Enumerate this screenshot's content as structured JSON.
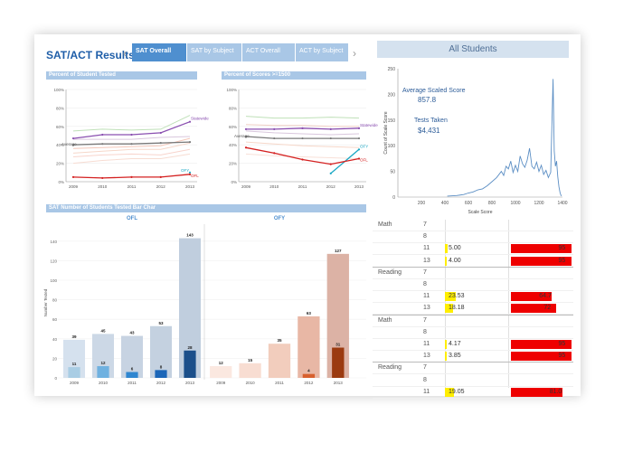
{
  "header": {
    "title": "SAT/ACT Results",
    "tabs": [
      {
        "label": "SAT Overall",
        "active": true
      },
      {
        "label": "SAT by Subject",
        "active": false
      },
      {
        "label": "ACT Overall",
        "active": false
      },
      {
        "label": "ACT by Subject",
        "active": false
      }
    ],
    "prev_icon": "chevron-left-icon",
    "next_icon": "chevron-right-icon"
  },
  "colors": {
    "tab_active": "#4f8fcf",
    "tab": "#a9c7e6",
    "ofl": "#2b74b5",
    "ofy": "#c0552a",
    "highlight_yellow": "#ffee00",
    "highlight_red": "#ee0000"
  },
  "panels": {
    "tested": {
      "title": "Percent of Student Tested"
    },
    "scores": {
      "title": "Percent of Scores >=1500"
    },
    "bar": {
      "title": "SAT Number of Students Tested Bar Char"
    },
    "all": {
      "title": "All Students",
      "avg_label": "Average Scaled Score",
      "avg_value": "857.8",
      "tests_label": "Tests Taken",
      "tests_value": "$4,431"
    }
  },
  "chart_data": [
    {
      "type": "line",
      "title": "Percent of Student Tested",
      "x": [
        "2009",
        "2010",
        "2011",
        "2012",
        "2013"
      ],
      "yticks": [
        "0%",
        "20%",
        "40%",
        "60%",
        "80%",
        "100%"
      ],
      "ylim": [
        0,
        100
      ],
      "series": [
        {
          "name": "Statewide",
          "values": [
            47,
            51,
            51,
            53,
            65
          ]
        },
        {
          "name": "Average",
          "values": [
            40,
            41,
            41,
            42,
            43
          ]
        },
        {
          "name": "OFY",
          "values": [
            null,
            null,
            null,
            null,
            10
          ]
        },
        {
          "name": "OFL",
          "values": [
            5,
            4,
            5,
            5,
            8
          ]
        },
        {
          "values": [
            55,
            57,
            56,
            57,
            72
          ]
        },
        {
          "values": [
            46,
            46,
            46,
            48,
            49
          ]
        },
        {
          "values": [
            36,
            37,
            38,
            39,
            47
          ]
        },
        {
          "values": [
            31,
            33,
            35,
            35,
            42
          ]
        },
        {
          "values": [
            27,
            29,
            30,
            29,
            35
          ]
        },
        {
          "values": [
            20,
            23,
            25,
            25,
            30
          ]
        }
      ]
    },
    {
      "type": "line",
      "title": "Percent of Scores >=1500",
      "x": [
        "2009",
        "2010",
        "2011",
        "2012",
        "2013"
      ],
      "yticks": [
        "0%",
        "20%",
        "40%",
        "60%",
        "80%",
        "100%"
      ],
      "ylim": [
        0,
        100
      ],
      "series": [
        {
          "name": "Statewide",
          "values": [
            57,
            57,
            58,
            57,
            58
          ]
        },
        {
          "name": "Average",
          "values": [
            49,
            47,
            47,
            47,
            47
          ]
        },
        {
          "name": "OFY",
          "values": [
            null,
            null,
            null,
            9,
            35
          ]
        },
        {
          "name": "OFL",
          "values": [
            37,
            31,
            24,
            19,
            25
          ]
        },
        {
          "values": [
            71,
            69,
            69,
            70,
            69
          ]
        },
        {
          "values": [
            62,
            61,
            61,
            60,
            60
          ]
        },
        {
          "values": [
            55,
            53,
            52,
            51,
            52
          ]
        },
        {
          "values": [
            43,
            41,
            39,
            38,
            37
          ]
        },
        {
          "values": [
            30,
            28,
            27,
            26,
            25
          ]
        }
      ]
    },
    {
      "type": "bar",
      "title": "SAT Number of Students Tested Bar Char",
      "ylabel": "Number Tested",
      "ylim": [
        0,
        150
      ],
      "yticks": [
        "0",
        "20",
        "40",
        "60",
        "80",
        "100",
        "120",
        "140"
      ],
      "groups": [
        {
          "name": "OFL",
          "categories": [
            "2009",
            "2010",
            "2011",
            "2012",
            "2013"
          ],
          "total": [
            39,
            45,
            43,
            53,
            143
          ],
          "high": [
            11,
            12,
            6,
            8,
            28
          ]
        },
        {
          "name": "OFY",
          "categories": [
            "2009",
            "2010",
            "2011",
            "2012",
            "2013"
          ],
          "total": [
            12,
            15,
            35,
            63,
            127
          ],
          "high": [
            null,
            null,
            null,
            4,
            31
          ]
        }
      ]
    },
    {
      "type": "area",
      "title": "All Students",
      "xlabel": "Scale Score",
      "ylabel": "Count of Scale Score",
      "xlim": [
        0,
        1400
      ],
      "ylim": [
        0,
        250
      ],
      "xticks": [
        "200",
        "400",
        "600",
        "800",
        "1000",
        "1200",
        "1400"
      ],
      "yticks": [
        "0",
        "50",
        "100",
        "150",
        "200",
        "250"
      ],
      "x": [
        420,
        500,
        560,
        600,
        640,
        680,
        720,
        760,
        800,
        840,
        880,
        900,
        920,
        940,
        960,
        980,
        1000,
        1020,
        1040,
        1060,
        1080,
        1100,
        1120,
        1140,
        1160,
        1180,
        1200,
        1220,
        1240,
        1260,
        1280,
        1300,
        1320,
        1330,
        1340,
        1350,
        1360,
        1370,
        1380,
        1390
      ],
      "values": [
        2,
        3,
        5,
        8,
        10,
        14,
        16,
        22,
        30,
        38,
        50,
        42,
        60,
        55,
        70,
        48,
        62,
        50,
        80,
        65,
        58,
        72,
        95,
        60,
        55,
        68,
        50,
        62,
        44,
        52,
        38,
        48,
        230,
        90,
        60,
        70,
        40,
        20,
        8,
        2
      ]
    }
  ],
  "table": {
    "groups": [
      {
        "subject": "Math",
        "rows": [
          {
            "grade": "7",
            "v1": "",
            "v2": ""
          },
          {
            "grade": "8",
            "v1": "",
            "v2": ""
          },
          {
            "grade": "11",
            "v1": "5.00",
            "v2": "95"
          },
          {
            "grade": "13",
            "v1": "4.00",
            "v2": "95"
          }
        ]
      },
      {
        "subject": "Reading",
        "rows": [
          {
            "grade": "7",
            "v1": "",
            "v2": ""
          },
          {
            "grade": "8",
            "v1": "",
            "v2": ""
          },
          {
            "grade": "11",
            "v1": "23.53",
            "v2": "64.7"
          },
          {
            "grade": "13",
            "v1": "18.18",
            "v2": "72"
          }
        ]
      },
      {
        "subject": "Math",
        "rows": [
          {
            "grade": "7",
            "v1": "",
            "v2": ""
          },
          {
            "grade": "8",
            "v1": "",
            "v2": ""
          },
          {
            "grade": "11",
            "v1": "4.17",
            "v2": "95"
          },
          {
            "grade": "13",
            "v1": "3.85",
            "v2": "95"
          }
        ]
      },
      {
        "subject": "Reading",
        "rows": [
          {
            "grade": "7",
            "v1": "",
            "v2": ""
          },
          {
            "grade": "8",
            "v1": "",
            "v2": ""
          },
          {
            "grade": "11",
            "v1": "19.05",
            "v2": "81.0"
          }
        ]
      }
    ]
  }
}
